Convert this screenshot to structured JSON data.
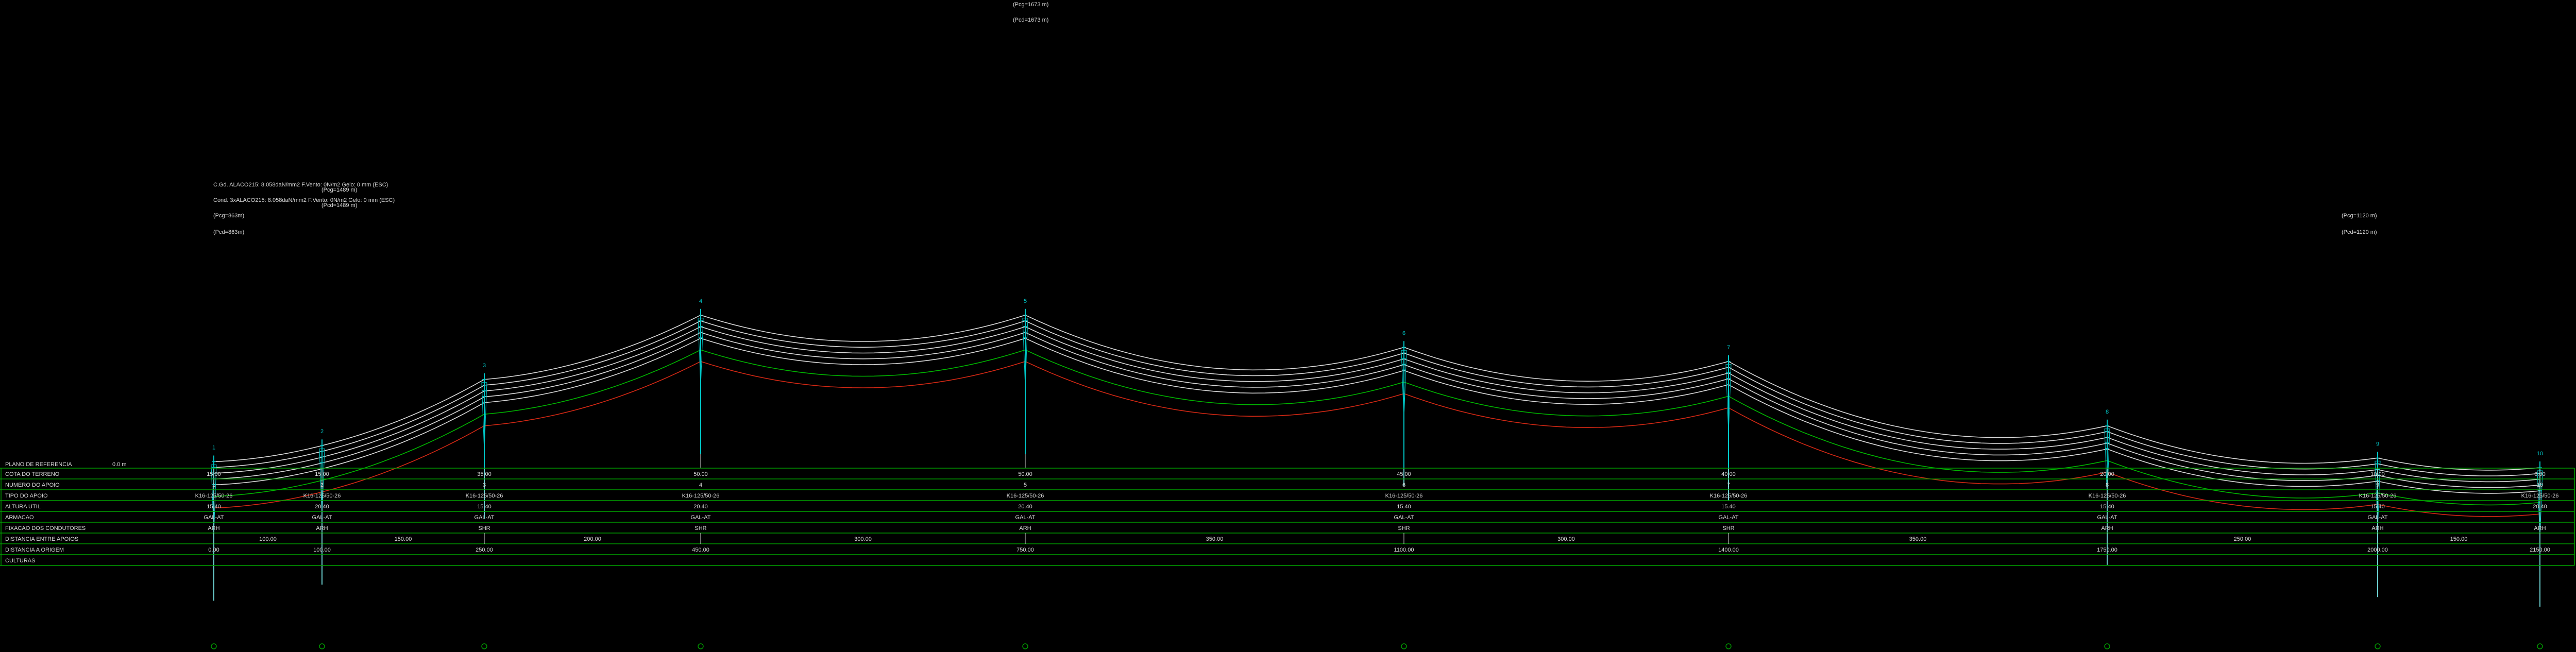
{
  "colors": {
    "background": "#000000",
    "cable_white": "#d8d8d8",
    "cable_green": "#00b400",
    "cable_red": "#d22814",
    "pole_cyan": "#00c8c8",
    "table_line_green": "#00a000",
    "text": "#d8d8d8"
  },
  "top_notes": [
    "(Pcg=1673 m)",
    "(Pcd=1673 m)"
  ],
  "legend": {
    "line1": "C.Gd. ALACO215: 8.058daN/mm2 F.Vento: 0N/m2 Gelo: 0 mm (ESC)",
    "line2": "Cond. 3xALACO215: 8.058daN/mm2 F.Vento: 0N/m2 Gelo: 0 mm (ESC)",
    "overlay1": "(Pcg=1489 m)",
    "overlay2": "(Pcd=1489 m)",
    "pcg": "(Pcg=863m)",
    "pcd": "(Pcd=863m)"
  },
  "right_notes": [
    "(Pcg=1120 m)",
    "(Pcd=1120 m)"
  ],
  "reference_plane": {
    "label": "PLANO DE REFERENCIA",
    "value": "0.0 m"
  },
  "table": {
    "rows": [
      "COTA DO TERRENO",
      "NUMERO DO APOIO",
      "TIPO DO APOIO",
      "ALTURA UTIL",
      "ARMACAO",
      "FIXACAO DOS CONDUTORES",
      "DISTANCIA ENTRE APOIOS",
      "DISTANCIA A ORIGEM",
      "CULTURAS"
    ]
  },
  "chart_data": {
    "type": "profile",
    "supports": [
      {
        "number": "1",
        "cota": "15.00",
        "tipo": "K16-125/50-26",
        "altura": "15.40",
        "armacao": "GAL-AT",
        "fixacao": "ARH",
        "origem": "0.00",
        "top": 1.85
      },
      {
        "number": "2",
        "cota": "15.00",
        "tipo": "K16-125/50-26",
        "altura": "20.40",
        "armacao": "GAL-AT",
        "fixacao": "ARH",
        "origem": "100.00",
        "top": 6.85
      },
      {
        "number": "3",
        "cota": "35.00",
        "tipo": "K16-125/50-26",
        "altura": "15.40",
        "armacao": "GAL-AT",
        "fixacao": "SHR",
        "origem": "250.00",
        "top": 27.4
      },
      {
        "number": "4",
        "cota": "50.00",
        "tipo": "K16-125/50-26",
        "altura": "20.40",
        "armacao": "GAL-AT",
        "fixacao": "SHR",
        "origem": "450.00",
        "top": 47.4
      },
      {
        "number": "5",
        "cota": "50.00",
        "tipo": "K16-125/50-26",
        "altura": "20.40",
        "armacao": "GAL-AT",
        "fixacao": "ARH",
        "origem": "750.00",
        "top": 47.4
      },
      {
        "number": "6",
        "cota": "45.00",
        "tipo": "K16-125/50-26",
        "altura": "15.40",
        "armacao": "GAL-AT",
        "fixacao": "SHR",
        "origem": "1100.00",
        "top": 37.4
      },
      {
        "number": "7",
        "cota": "40.00",
        "tipo": "K16-125/50-26",
        "altura": "15.40",
        "armacao": "GAL-AT",
        "fixacao": "SHR",
        "origem": "1400.00",
        "top": 33.0
      },
      {
        "number": "8",
        "cota": "20.00",
        "tipo": "K16-125/50-26",
        "altura": "15.40",
        "armacao": "GAL-AT",
        "fixacao": "ARH",
        "origem": "1750.00",
        "top": 13.0
      },
      {
        "number": "9",
        "cota": "10.00",
        "tipo": "K16-125/50-26",
        "altura": "15.40",
        "armacao": "GAL-AT",
        "fixacao": "ARH",
        "origem": "2000.00",
        "top": 3.0
      },
      {
        "number": "10",
        "cota": "0.00",
        "tipo": "K16-125/50-26",
        "altura": "20.40",
        "armacao": "",
        "fixacao": "ARH",
        "origem": "2150.00",
        "top": 0.0
      }
    ],
    "spans": [
      "100.00",
      "150.00",
      "200.00",
      "300.00",
      "350.00",
      "300.00",
      "350.00",
      "250.00",
      "150.00"
    ],
    "sags": [
      0.9,
      2.0,
      3.6,
      8.2,
      11.5,
      8.2,
      11.5,
      5.5,
      2.0
    ]
  }
}
